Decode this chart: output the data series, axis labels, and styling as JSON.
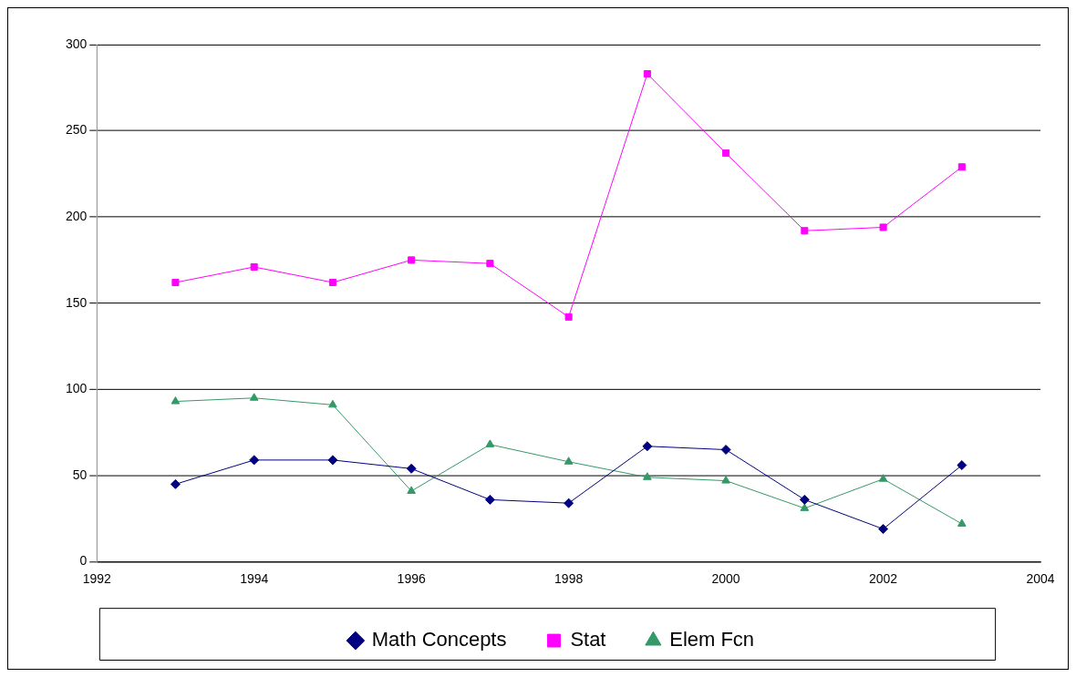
{
  "chart_data": {
    "type": "line",
    "x": [
      1993,
      1994,
      1995,
      1996,
      1997,
      1998,
      1999,
      2000,
      2001,
      2002,
      2003
    ],
    "series": [
      {
        "name": "Math Concepts",
        "color": "#000080",
        "marker": "diamond",
        "values": [
          45,
          59,
          59,
          54,
          36,
          34,
          67,
          65,
          36,
          19,
          56
        ]
      },
      {
        "name": "Stat",
        "color": "#ff00ff",
        "marker": "square",
        "values": [
          162,
          171,
          162,
          175,
          173,
          142,
          283,
          237,
          192,
          194,
          229
        ]
      },
      {
        "name": "Elem Fcn",
        "color": "#339966",
        "marker": "triangle",
        "values": [
          93,
          95,
          91,
          41,
          68,
          58,
          49,
          47,
          31,
          48,
          22
        ]
      }
    ],
    "xlim": [
      1992,
      2004
    ],
    "xticks": [
      1992,
      1994,
      1996,
      1998,
      2000,
      2002,
      2004
    ],
    "ylim": [
      0,
      300
    ],
    "yticks": [
      0,
      50,
      100,
      150,
      200,
      250,
      300
    ],
    "grid": "y",
    "legend": "bottom",
    "line_style": "solid"
  }
}
